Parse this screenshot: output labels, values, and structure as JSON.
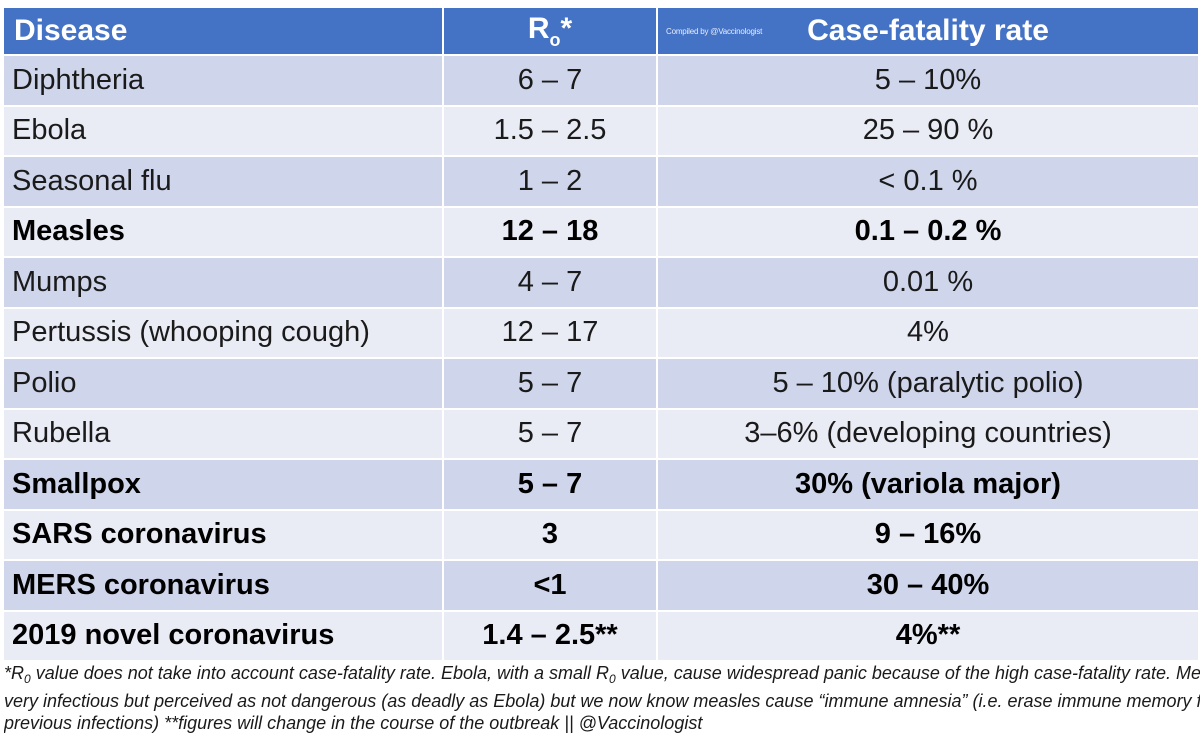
{
  "header": {
    "disease": "Disease",
    "r0_main": "R",
    "r0_sub": "o",
    "r0_mark": "*",
    "credit": "Compiled by @Vaccinologist",
    "cfr": "Case-fatality rate"
  },
  "rows": [
    {
      "disease": "Diphtheria",
      "r0": "6 – 7",
      "cfr": "5 – 10%",
      "bold": false
    },
    {
      "disease": "Ebola",
      "r0": "1.5 – 2.5",
      "cfr": "25 – 90 %",
      "bold": false
    },
    {
      "disease": "Seasonal flu",
      "r0": "1 – 2",
      "cfr": "< 0.1 %",
      "bold": false
    },
    {
      "disease": "Measles",
      "r0": "12 – 18",
      "cfr": "0.1 – 0.2 %",
      "bold": true
    },
    {
      "disease": "Mumps",
      "r0": "4 – 7",
      "cfr": "0.01 %",
      "bold": false
    },
    {
      "disease": "Pertussis (whooping cough)",
      "r0": "12 – 17",
      "cfr": "4%",
      "bold": false
    },
    {
      "disease": "Polio",
      "r0": "5 – 7",
      "cfr": "5 – 10% (paralytic polio)",
      "bold": false
    },
    {
      "disease": "Rubella",
      "r0": "5 – 7",
      "cfr": "3–6% (developing countries)",
      "bold": false
    },
    {
      "disease": "Smallpox",
      "r0": "5 – 7",
      "cfr": "30% (variola major)",
      "bold": true
    },
    {
      "disease": "SARS coronavirus",
      "r0": "3",
      "cfr": "9 – 16%",
      "bold": true
    },
    {
      "disease": "MERS coronavirus",
      "r0": "<1",
      "cfr": "30 – 40%",
      "bold": true
    },
    {
      "disease": "2019 novel coronavirus",
      "r0": "1.4 – 2.5**",
      "cfr": "4%**",
      "bold": true
    }
  ],
  "footnote": {
    "line1_a": "*R",
    "line1_sub": "0",
    "line1_b": " value does not take into account case-fatality rate. Ebola, with a small R",
    "line1_sub2": "0",
    "line1_c": " value, cause widespread panic because of the high case-fatality rate. Measles is",
    "line2": "very infectious but perceived as not dangerous (as deadly as Ebola) but we now know measles cause “immune amnesia” (i.e. erase immune memory from",
    "line3": "previous infections) **figures will change in the course of the outbreak || @Vaccinologist"
  }
}
